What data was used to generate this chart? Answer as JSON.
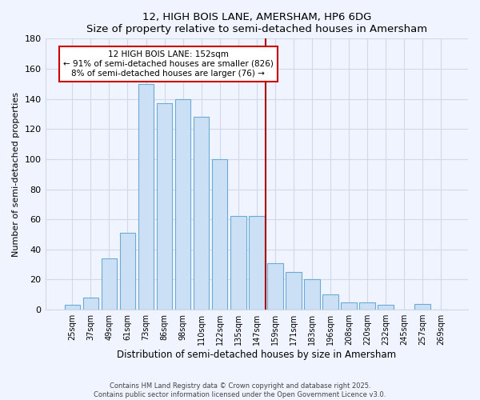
{
  "title1": "12, HIGH BOIS LANE, AMERSHAM, HP6 6DG",
  "title2": "Size of property relative to semi-detached houses in Amersham",
  "xlabel": "Distribution of semi-detached houses by size in Amersham",
  "ylabel": "Number of semi-detached properties",
  "bar_labels": [
    "25sqm",
    "37sqm",
    "49sqm",
    "61sqm",
    "73sqm",
    "86sqm",
    "98sqm",
    "110sqm",
    "122sqm",
    "135sqm",
    "147sqm",
    "159sqm",
    "171sqm",
    "183sqm",
    "196sqm",
    "208sqm",
    "220sqm",
    "232sqm",
    "245sqm",
    "257sqm",
    "269sqm"
  ],
  "bar_values": [
    3,
    8,
    34,
    51,
    150,
    137,
    140,
    128,
    100,
    62,
    62,
    31,
    25,
    20,
    10,
    5,
    5,
    3,
    0,
    4,
    0
  ],
  "bar_color": "#cce0f5",
  "bar_edge_color": "#6aaad4",
  "vline_color": "#aa0000",
  "annotation_title": "12 HIGH BOIS LANE: 152sqm",
  "annotation_line1": "← 91% of semi-detached houses are smaller (826)",
  "annotation_line2": "8% of semi-detached houses are larger (76) →",
  "annotation_box_color": "white",
  "annotation_box_edge": "#cc0000",
  "ylim": [
    0,
    180
  ],
  "yticks": [
    0,
    20,
    40,
    60,
    80,
    100,
    120,
    140,
    160,
    180
  ],
  "footer1": "Contains HM Land Registry data © Crown copyright and database right 2025.",
  "footer2": "Contains public sector information licensed under the Open Government Licence v3.0.",
  "bg_color": "#f0f4ff",
  "grid_color": "#d0d8ea",
  "vline_x_index": 10.5
}
